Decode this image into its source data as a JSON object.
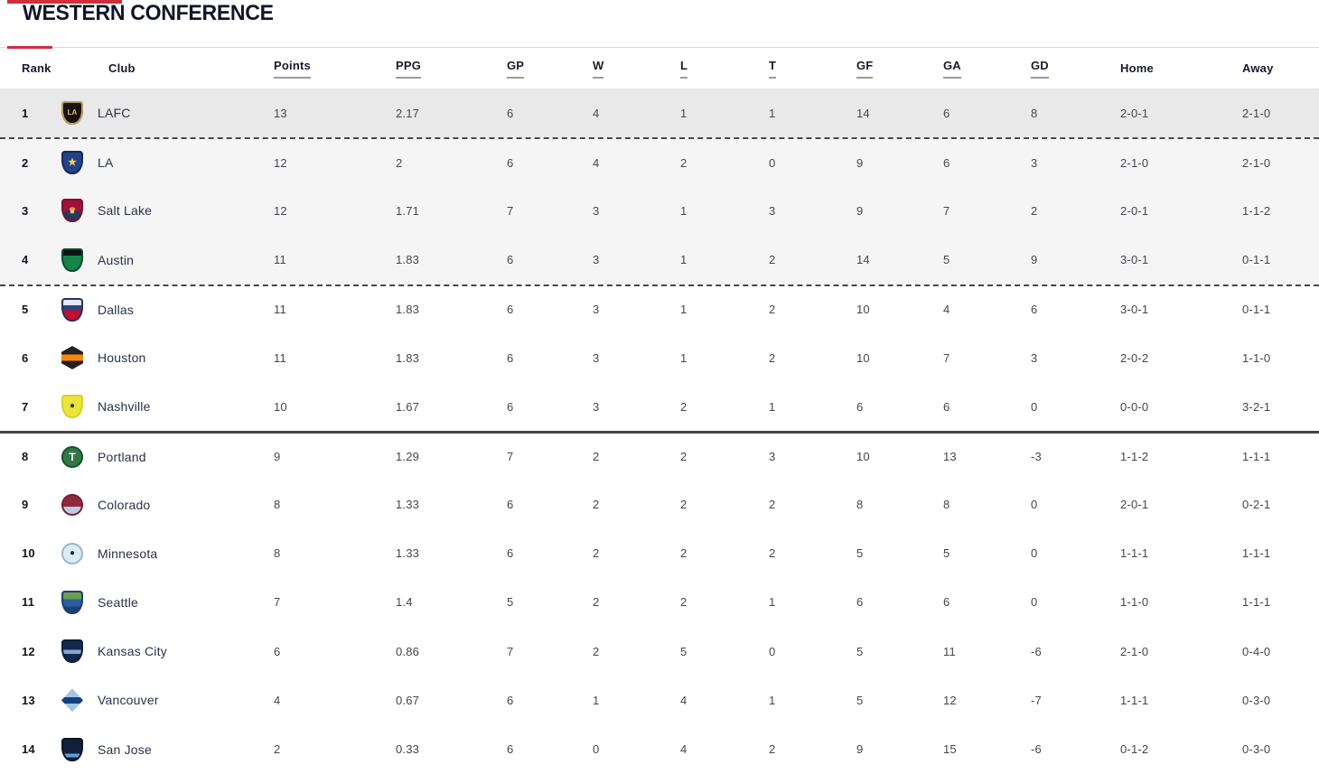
{
  "page": {
    "title": "WESTERN CONFERENCE"
  },
  "colors": {
    "accent_red": "#cf2e3b",
    "title_color": "#101628",
    "header_text": "#171b2d",
    "row_text": "#45454f",
    "rank_text": "#12141f",
    "club_text": "#2b3147",
    "leader_bg": "#e9e9e9",
    "top4_bg": "#f5f5f5",
    "divider_dark": "#454545",
    "border_light": "#d9d9d9",
    "header_underline": "#9b9b9f"
  },
  "table": {
    "columns": [
      {
        "key": "rank",
        "label": "Rank",
        "underlined": false
      },
      {
        "key": "club",
        "label": "Club",
        "underlined": false
      },
      {
        "key": "points",
        "label": "Points",
        "underlined": true
      },
      {
        "key": "ppg",
        "label": "PPG",
        "underlined": true
      },
      {
        "key": "gp",
        "label": "GP",
        "underlined": true
      },
      {
        "key": "w",
        "label": "W",
        "underlined": true
      },
      {
        "key": "l",
        "label": "L",
        "underlined": true
      },
      {
        "key": "t",
        "label": "T",
        "underlined": true
      },
      {
        "key": "gf",
        "label": "GF",
        "underlined": true
      },
      {
        "key": "ga",
        "label": "GA",
        "underlined": true
      },
      {
        "key": "gd",
        "label": "GD",
        "underlined": true
      },
      {
        "key": "home",
        "label": "Home",
        "underlined": false
      },
      {
        "key": "away",
        "label": "Away",
        "underlined": false
      }
    ],
    "rows": [
      {
        "rank": "1",
        "club": "LAFC",
        "points": "13",
        "ppg": "2.17",
        "gp": "6",
        "w": "4",
        "l": "1",
        "t": "1",
        "gf": "14",
        "ga": "6",
        "gd": "8",
        "home": "2-0-1",
        "away": "2-1-0",
        "shade": "leader",
        "divider_above": "",
        "logo": {
          "name": "lafc-crest",
          "shape": "shield",
          "bands": [
            {
              "color": "#17120e",
              "to": 100
            }
          ],
          "border": "#b99c5f",
          "glyph": "LA",
          "glyph_color": "#d9bd85",
          "glyph_size": "8px"
        }
      },
      {
        "rank": "2",
        "club": "LA",
        "points": "12",
        "ppg": "2",
        "gp": "6",
        "w": "4",
        "l": "2",
        "t": "0",
        "gf": "9",
        "ga": "6",
        "gd": "3",
        "home": "2-1-0",
        "away": "2-1-0",
        "shade": "top4",
        "divider_above": "dashed",
        "logo": {
          "name": "la-galaxy-crest",
          "shape": "shield",
          "bands": [
            {
              "color": "#24418a",
              "to": 100
            }
          ],
          "border": "#16295c",
          "glyph": "★",
          "glyph_color": "#f5d13f",
          "glyph_size": "11px"
        }
      },
      {
        "rank": "3",
        "club": "Salt Lake",
        "points": "12",
        "ppg": "1.71",
        "gp": "7",
        "w": "3",
        "l": "1",
        "t": "3",
        "gf": "9",
        "ga": "7",
        "gd": "2",
        "home": "2-0-1",
        "away": "1-1-2",
        "shade": "top4",
        "divider_above": "",
        "logo": {
          "name": "salt-lake-crest",
          "shape": "shield",
          "bands": [
            {
              "color": "#a50f3a",
              "to": 52
            },
            {
              "color": "#27395f",
              "to": 100
            }
          ],
          "border": "#7e1030",
          "glyph": "♛",
          "glyph_color": "#f0c75e",
          "glyph_size": "9px"
        }
      },
      {
        "rank": "4",
        "club": "Austin",
        "points": "11",
        "ppg": "1.83",
        "gp": "6",
        "w": "3",
        "l": "1",
        "t": "2",
        "gf": "14",
        "ga": "5",
        "gd": "9",
        "home": "3-0-1",
        "away": "0-1-1",
        "shade": "top4",
        "divider_above": "",
        "logo": {
          "name": "austin-crest",
          "shape": "shield",
          "bands": [
            {
              "color": "#111111",
              "to": 30
            },
            {
              "color": "#15854b",
              "to": 100
            }
          ],
          "border": "#0d4d2c",
          "glyph": "",
          "glyph_color": "#ffffff",
          "glyph_size": "9px"
        }
      },
      {
        "rank": "5",
        "club": "Dallas",
        "points": "11",
        "ppg": "1.83",
        "gp": "6",
        "w": "3",
        "l": "1",
        "t": "2",
        "gf": "10",
        "ga": "4",
        "gd": "6",
        "home": "3-0-1",
        "away": "0-1-1",
        "shade": "",
        "divider_above": "dashed",
        "logo": {
          "name": "dallas-crest",
          "shape": "shield",
          "bands": [
            {
              "color": "#e4e9f2",
              "to": 30
            },
            {
              "color": "#2c4487",
              "to": 52
            },
            {
              "color": "#c60c30",
              "to": 100
            }
          ],
          "border": "#22315f",
          "glyph": "",
          "glyph_color": "#ffffff",
          "glyph_size": "9px"
        }
      },
      {
        "rank": "6",
        "club": "Houston",
        "points": "11",
        "ppg": "1.83",
        "gp": "6",
        "w": "3",
        "l": "1",
        "t": "2",
        "gf": "10",
        "ga": "7",
        "gd": "3",
        "home": "2-0-2",
        "away": "1-1-0",
        "shade": "",
        "divider_above": "",
        "logo": {
          "name": "houston-crest",
          "shape": "hex",
          "bands": [
            {
              "color": "#262021",
              "to": 36
            },
            {
              "color": "#f68712",
              "to": 64
            },
            {
              "color": "#262021",
              "to": 100
            }
          ],
          "border": "",
          "glyph": "",
          "glyph_color": "#ffffff",
          "glyph_size": "9px"
        }
      },
      {
        "rank": "7",
        "club": "Nashville",
        "points": "10",
        "ppg": "1.67",
        "gp": "6",
        "w": "3",
        "l": "2",
        "t": "1",
        "gf": "6",
        "ga": "6",
        "gd": "0",
        "home": "0-0-0",
        "away": "3-2-1",
        "shade": "",
        "divider_above": "",
        "logo": {
          "name": "nashville-crest",
          "shape": "shield",
          "bands": [
            {
              "color": "#ece539",
              "to": 100
            }
          ],
          "border": "#d6d02f",
          "glyph": "●",
          "glyph_color": "#2b3350",
          "glyph_size": "10px"
        }
      },
      {
        "rank": "8",
        "club": "Portland",
        "points": "9",
        "ppg": "1.29",
        "gp": "7",
        "w": "2",
        "l": "2",
        "t": "3",
        "gf": "10",
        "ga": "13",
        "gd": "-3",
        "home": "1-1-2",
        "away": "1-1-1",
        "shade": "",
        "divider_above": "solid",
        "logo": {
          "name": "portland-crest",
          "shape": "circle",
          "bands": [
            {
              "color": "#2f7a44",
              "to": 100
            }
          ],
          "border": "#1c5230",
          "glyph": "T",
          "glyph_color": "#ffffff",
          "glyph_size": "12px"
        }
      },
      {
        "rank": "9",
        "club": "Colorado",
        "points": "8",
        "ppg": "1.33",
        "gp": "6",
        "w": "2",
        "l": "2",
        "t": "2",
        "gf": "8",
        "ga": "8",
        "gd": "0",
        "home": "2-0-1",
        "away": "0-2-1",
        "shade": "",
        "divider_above": "",
        "logo": {
          "name": "colorado-crest",
          "shape": "circle",
          "bands": [
            {
              "color": "#93273a",
              "to": 58
            },
            {
              "color": "#b9cde4",
              "to": 100
            }
          ],
          "border": "#7c1f30",
          "glyph": "",
          "glyph_color": "#ffffff",
          "glyph_size": "9px"
        }
      },
      {
        "rank": "10",
        "club": "Minnesota",
        "points": "8",
        "ppg": "1.33",
        "gp": "6",
        "w": "2",
        "l": "2",
        "t": "2",
        "gf": "5",
        "ga": "5",
        "gd": "0",
        "home": "1-1-1",
        "away": "1-1-1",
        "shade": "",
        "divider_above": "",
        "logo": {
          "name": "minnesota-crest",
          "shape": "circle",
          "bands": [
            {
              "color": "#dcecf7",
              "to": 100
            }
          ],
          "border": "#9fb6c8",
          "glyph": "●",
          "glyph_color": "#2b2b33",
          "glyph_size": "10px"
        }
      },
      {
        "rank": "11",
        "club": "Seattle",
        "points": "7",
        "ppg": "1.4",
        "gp": "5",
        "w": "2",
        "l": "2",
        "t": "1",
        "gf": "6",
        "ga": "6",
        "gd": "0",
        "home": "1-1-0",
        "away": "1-1-1",
        "shade": "",
        "divider_above": "",
        "logo": {
          "name": "seattle-crest",
          "shape": "shield",
          "bands": [
            {
              "color": "#6ea04b",
              "to": 36
            },
            {
              "color": "#2c5da0",
              "to": 68
            },
            {
              "color": "#1d3f74",
              "to": 100
            }
          ],
          "border": "#1d3f74",
          "glyph": "",
          "glyph_color": "#ffffff",
          "glyph_size": "9px"
        }
      },
      {
        "rank": "12",
        "club": "Kansas City",
        "points": "6",
        "ppg": "0.86",
        "gp": "7",
        "w": "2",
        "l": "5",
        "t": "0",
        "gf": "5",
        "ga": "11",
        "gd": "-6",
        "home": "2-1-0",
        "away": "0-4-0",
        "shade": "",
        "divider_above": "",
        "logo": {
          "name": "kansas-city-crest",
          "shape": "shield",
          "bands": [
            {
              "color": "#12294d",
              "to": 45
            },
            {
              "color": "#86a9cf",
              "to": 62
            },
            {
              "color": "#12294d",
              "to": 100
            }
          ],
          "border": "#0c1e3a",
          "glyph": "",
          "glyph_color": "#ffffff",
          "glyph_size": "9px"
        }
      },
      {
        "rank": "13",
        "club": "Vancouver",
        "points": "4",
        "ppg": "0.67",
        "gp": "6",
        "w": "1",
        "l": "4",
        "t": "1",
        "gf": "5",
        "ga": "12",
        "gd": "-7",
        "home": "1-1-1",
        "away": "0-3-0",
        "shade": "",
        "divider_above": "",
        "logo": {
          "name": "vancouver-crest",
          "shape": "diamond",
          "bands": [
            {
              "color": "#a3c6e8",
              "to": 38
            },
            {
              "color": "#14407c",
              "to": 66
            },
            {
              "color": "#a3c6e8",
              "to": 100
            }
          ],
          "border": "",
          "glyph": "",
          "glyph_color": "#ffffff",
          "glyph_size": "9px"
        }
      },
      {
        "rank": "14",
        "club": "San Jose",
        "points": "2",
        "ppg": "0.33",
        "gp": "6",
        "w": "0",
        "l": "4",
        "t": "2",
        "gf": "9",
        "ga": "15",
        "gd": "-6",
        "home": "0-1-2",
        "away": "0-3-0",
        "shade": "",
        "divider_above": "",
        "logo": {
          "name": "san-jose-crest",
          "shape": "shield",
          "bands": [
            {
              "color": "#10203c",
              "to": 68
            },
            {
              "color": "#5f9fd4",
              "to": 82
            },
            {
              "color": "#10203c",
              "to": 100
            }
          ],
          "border": "#0a1526",
          "glyph": "",
          "glyph_color": "#ffffff",
          "glyph_size": "9px"
        }
      }
    ]
  }
}
